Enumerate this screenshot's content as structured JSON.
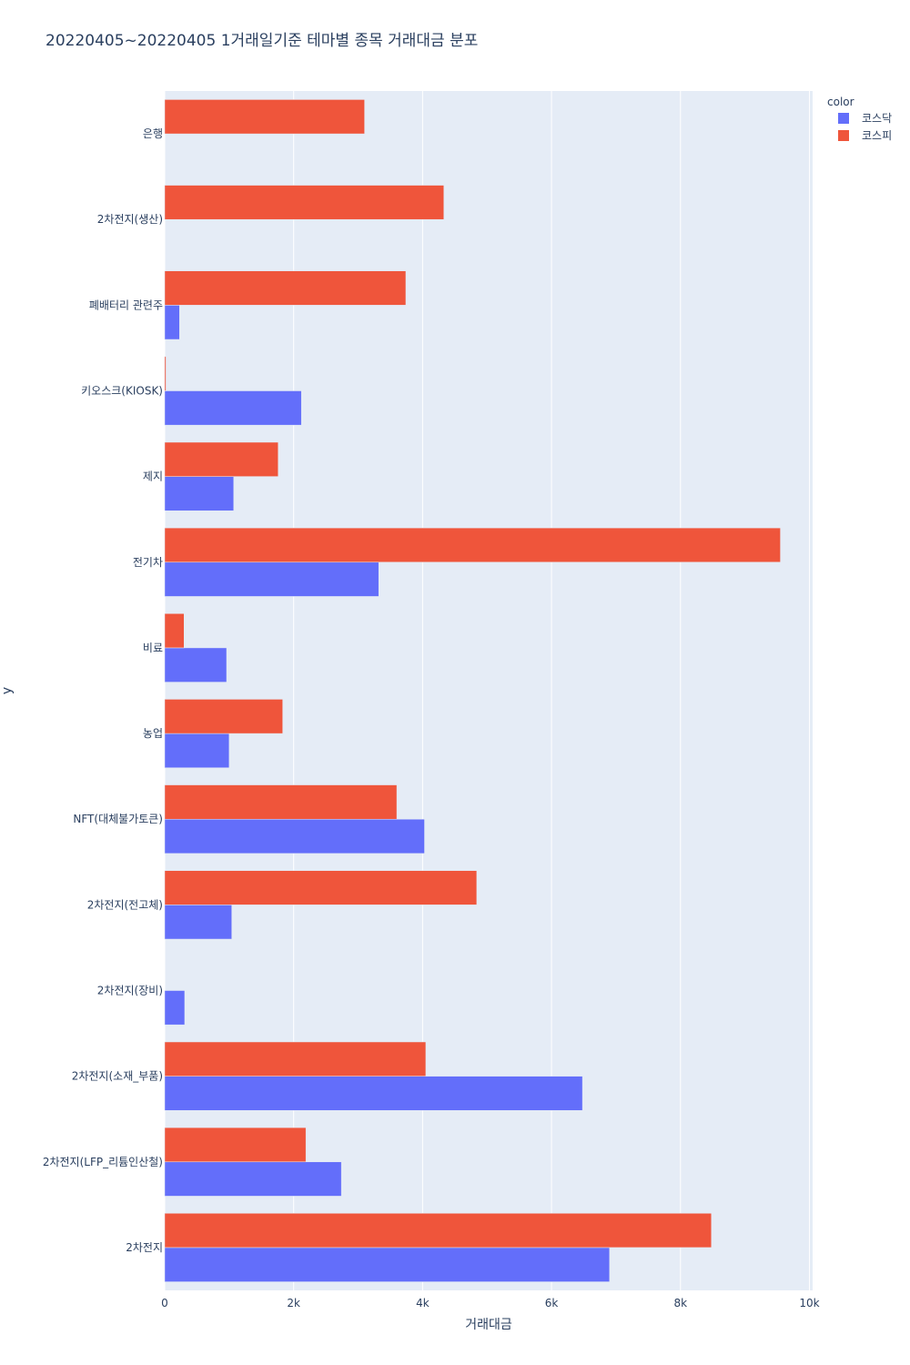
{
  "chart_data": {
    "type": "bar",
    "orientation": "horizontal",
    "barmode": "group",
    "title": "20220405~20220405 1거래일기준 테마별 종목 거래대금 분포",
    "xlabel": "거래대금",
    "ylabel": "y",
    "xlim": [
      0,
      10050
    ],
    "x_ticks": [
      0,
      2000,
      4000,
      6000,
      8000,
      10000
    ],
    "x_tick_labels": [
      "0",
      "2k",
      "4k",
      "6k",
      "8k",
      "10k"
    ],
    "categories": [
      "은행",
      "2차전지(생산)",
      "폐배터리 관련주",
      "키오스크(KIOSK)",
      "제지",
      "전기차",
      "비료",
      "농업",
      "NFT(대체불가토큰)",
      "2차전지(전고체)",
      "2차전지(장비)",
      "2차전지(소재_부품)",
      "2차전지(LFP_리튬인산철)",
      "2차전지"
    ],
    "legend_title": "color",
    "legend_position": "top-right",
    "grid": true,
    "series": [
      {
        "name": "코스닥",
        "color": "#636efa",
        "values": [
          0,
          0,
          230,
          2120,
          1070,
          3320,
          960,
          1000,
          4030,
          1040,
          310,
          6480,
          2740,
          6900
        ]
      },
      {
        "name": "코스피",
        "color": "#ef553b",
        "values": [
          3100,
          4330,
          3740,
          20,
          1760,
          9550,
          300,
          1830,
          3600,
          4840,
          0,
          4050,
          2190,
          8480
        ]
      }
    ]
  }
}
